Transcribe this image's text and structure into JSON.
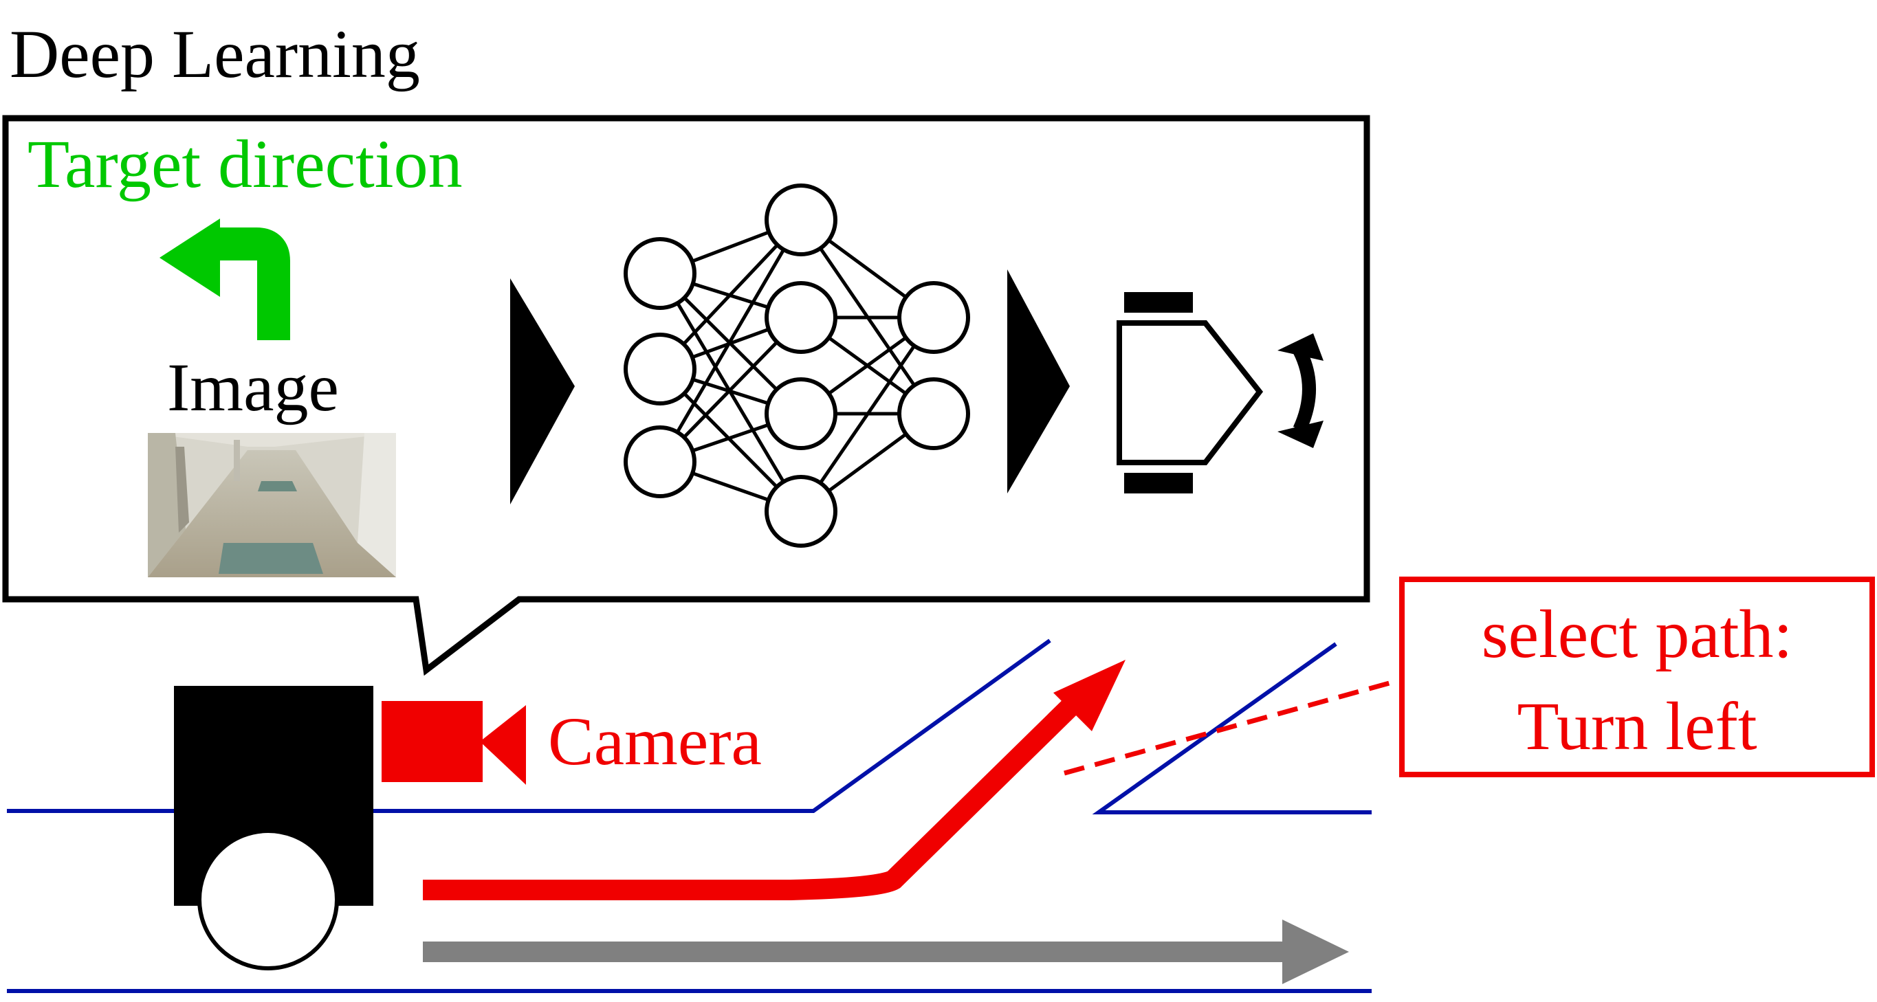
{
  "title": "Deep Learning",
  "target_direction_label": "Target direction",
  "image_label": "Image",
  "camera_label": "Camera",
  "select_path_line1": "select path:",
  "select_path_line2": "Turn left",
  "colors": {
    "green": "#00c800",
    "red": "#f00000",
    "blue": "#0010a8",
    "gray": "#808080",
    "black": "#000000"
  },
  "network_layers": [
    3,
    4,
    2
  ],
  "icons": [
    "turn-left-arrow-icon",
    "play-arrow-icon",
    "neural-network-icon",
    "robot-top-view-icon",
    "rotate-arrows-icon",
    "camera-icon",
    "robot-icon"
  ]
}
